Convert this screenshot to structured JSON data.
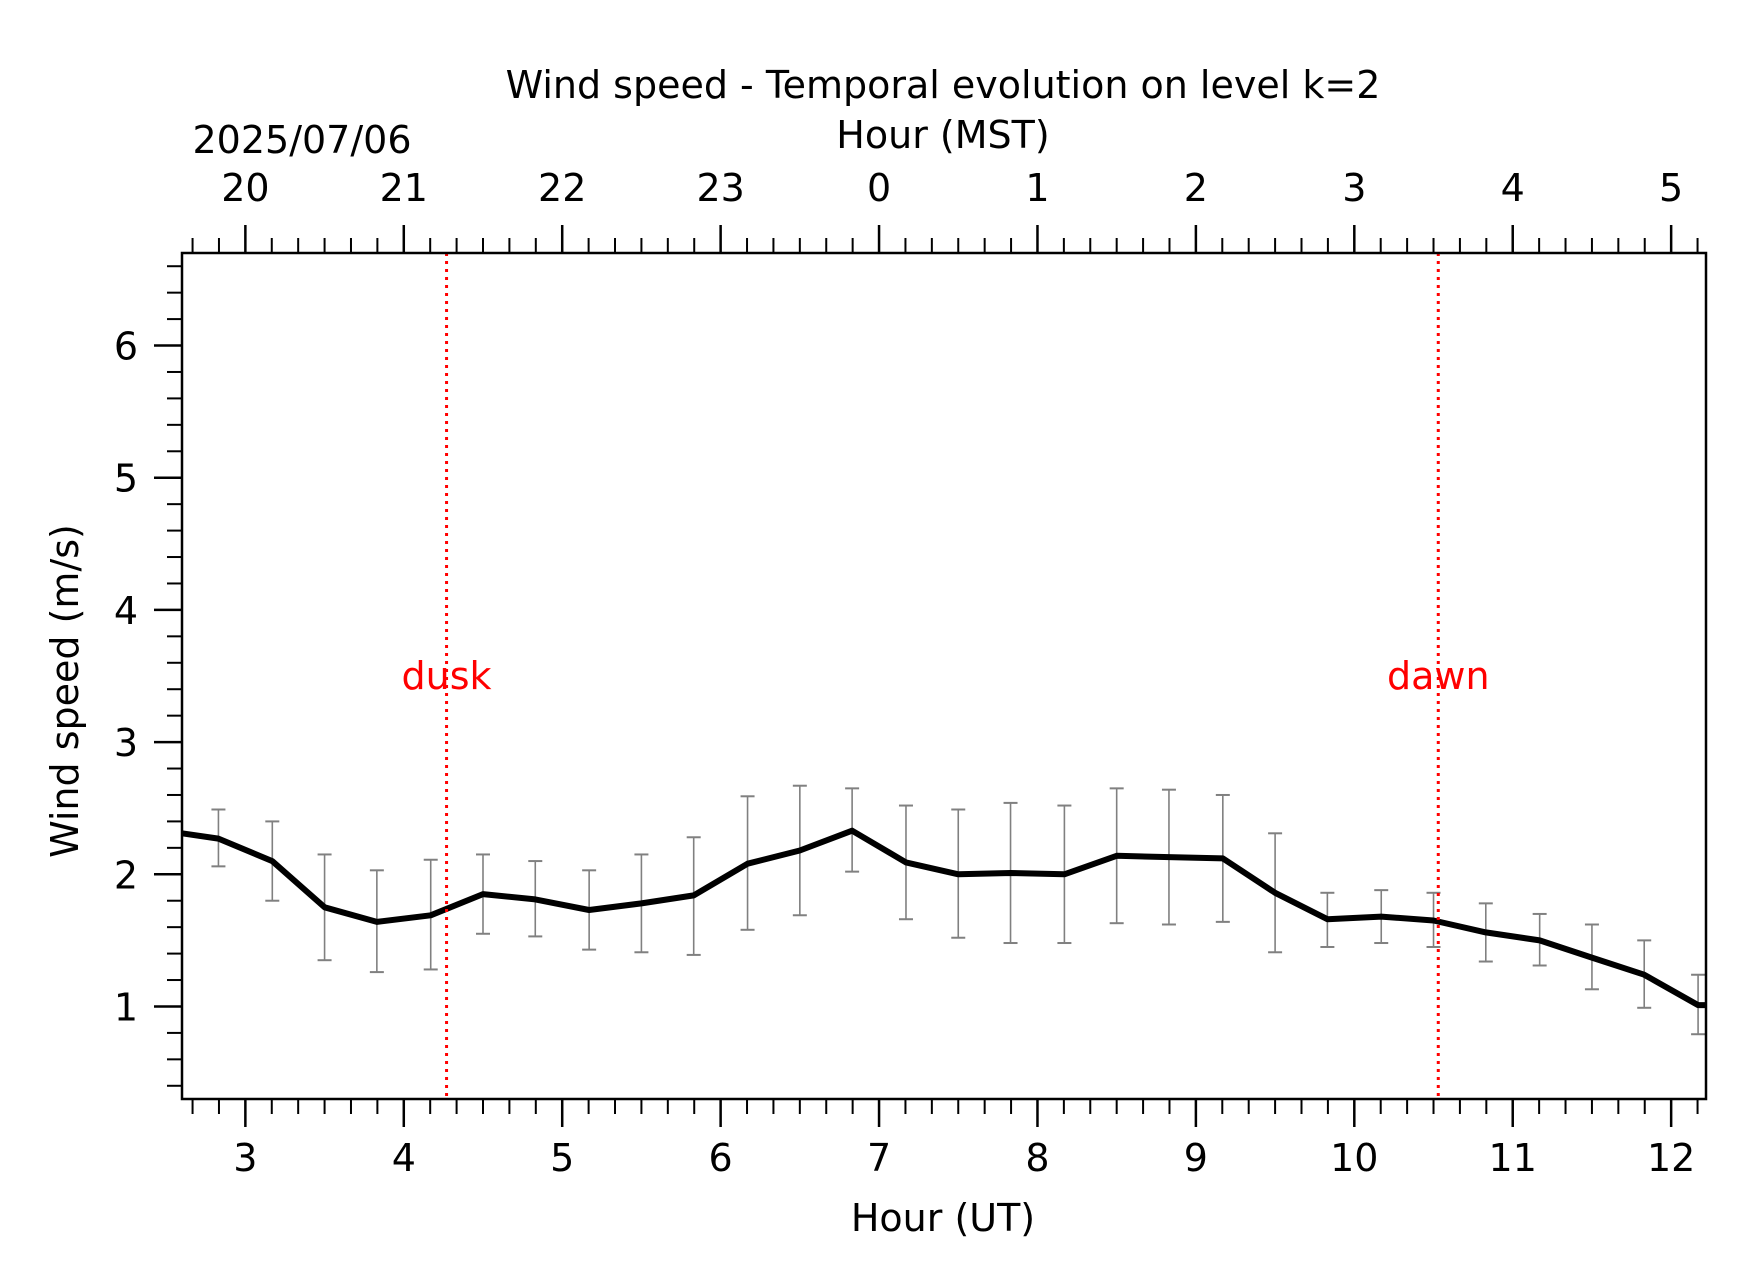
{
  "chart_data": {
    "type": "line",
    "title": "Wind speed - Temporal evolution on level k=2",
    "date_label": "2025/07/06",
    "xlabel": "Hour (UT)",
    "x2label": "Hour (MST)",
    "ylabel": "Wind speed (m/s)",
    "xlim": [
      2.6,
      12.22
    ],
    "ylim": [
      0.3,
      6.7
    ],
    "x_ticks": [
      "3",
      "4",
      "5",
      "6",
      "7",
      "8",
      "9",
      "10",
      "11",
      "12"
    ],
    "x2_ticks": [
      "20",
      "21",
      "22",
      "23",
      "0",
      "1",
      "2",
      "3",
      "4",
      "5"
    ],
    "y_ticks": [
      "1",
      "2",
      "3",
      "4",
      "5",
      "6"
    ],
    "grid": false,
    "series": [
      {
        "x": [
          2.6,
          2.83,
          3.17,
          3.5,
          3.83,
          4.17,
          4.5,
          4.83,
          5.17,
          5.5,
          5.83,
          6.17,
          6.5,
          6.83,
          7.17,
          7.5,
          7.83,
          8.17,
          8.5,
          8.83,
          9.17,
          9.5,
          9.83,
          10.17,
          10.5,
          10.83,
          11.17,
          11.5,
          11.83,
          12.17,
          12.22
        ],
        "y": [
          2.31,
          2.27,
          2.1,
          1.75,
          1.64,
          1.69,
          1.85,
          1.81,
          1.73,
          1.78,
          1.84,
          2.08,
          2.18,
          2.33,
          2.09,
          2.0,
          2.01,
          2.0,
          2.14,
          2.13,
          2.12,
          1.86,
          1.66,
          1.68,
          1.65,
          1.56,
          1.5,
          1.37,
          1.24,
          1.01,
          1.01
        ],
        "color": "#000000"
      }
    ],
    "error_bars": {
      "x": [
        2.83,
        3.17,
        3.5,
        3.83,
        4.17,
        4.5,
        4.83,
        5.17,
        5.5,
        5.83,
        6.17,
        6.5,
        6.83,
        7.17,
        7.5,
        7.83,
        8.17,
        8.5,
        8.83,
        9.17,
        9.5,
        9.83,
        10.17,
        10.5,
        10.83,
        11.17,
        11.5,
        11.83,
        12.17
      ],
      "low": [
        2.06,
        1.8,
        1.35,
        1.26,
        1.28,
        1.55,
        1.53,
        1.43,
        1.41,
        1.39,
        1.58,
        1.69,
        2.02,
        1.66,
        1.52,
        1.48,
        1.48,
        1.63,
        1.62,
        1.64,
        1.41,
        1.45,
        1.48,
        1.45,
        1.34,
        1.31,
        1.13,
        0.99,
        0.79
      ],
      "high": [
        2.49,
        2.4,
        2.15,
        2.03,
        2.11,
        2.15,
        2.1,
        2.03,
        2.15,
        2.28,
        2.59,
        2.67,
        2.65,
        2.52,
        2.49,
        2.54,
        2.52,
        2.65,
        2.64,
        2.6,
        2.31,
        1.86,
        1.88,
        1.86,
        1.78,
        1.7,
        1.62,
        1.5,
        1.24
      ],
      "color": "#808080"
    },
    "markers": [
      {
        "x": 4.27,
        "label": "dusk",
        "color": "#ff0000"
      },
      {
        "x": 10.53,
        "label": "dawn",
        "color": "#ff0000"
      }
    ]
  }
}
